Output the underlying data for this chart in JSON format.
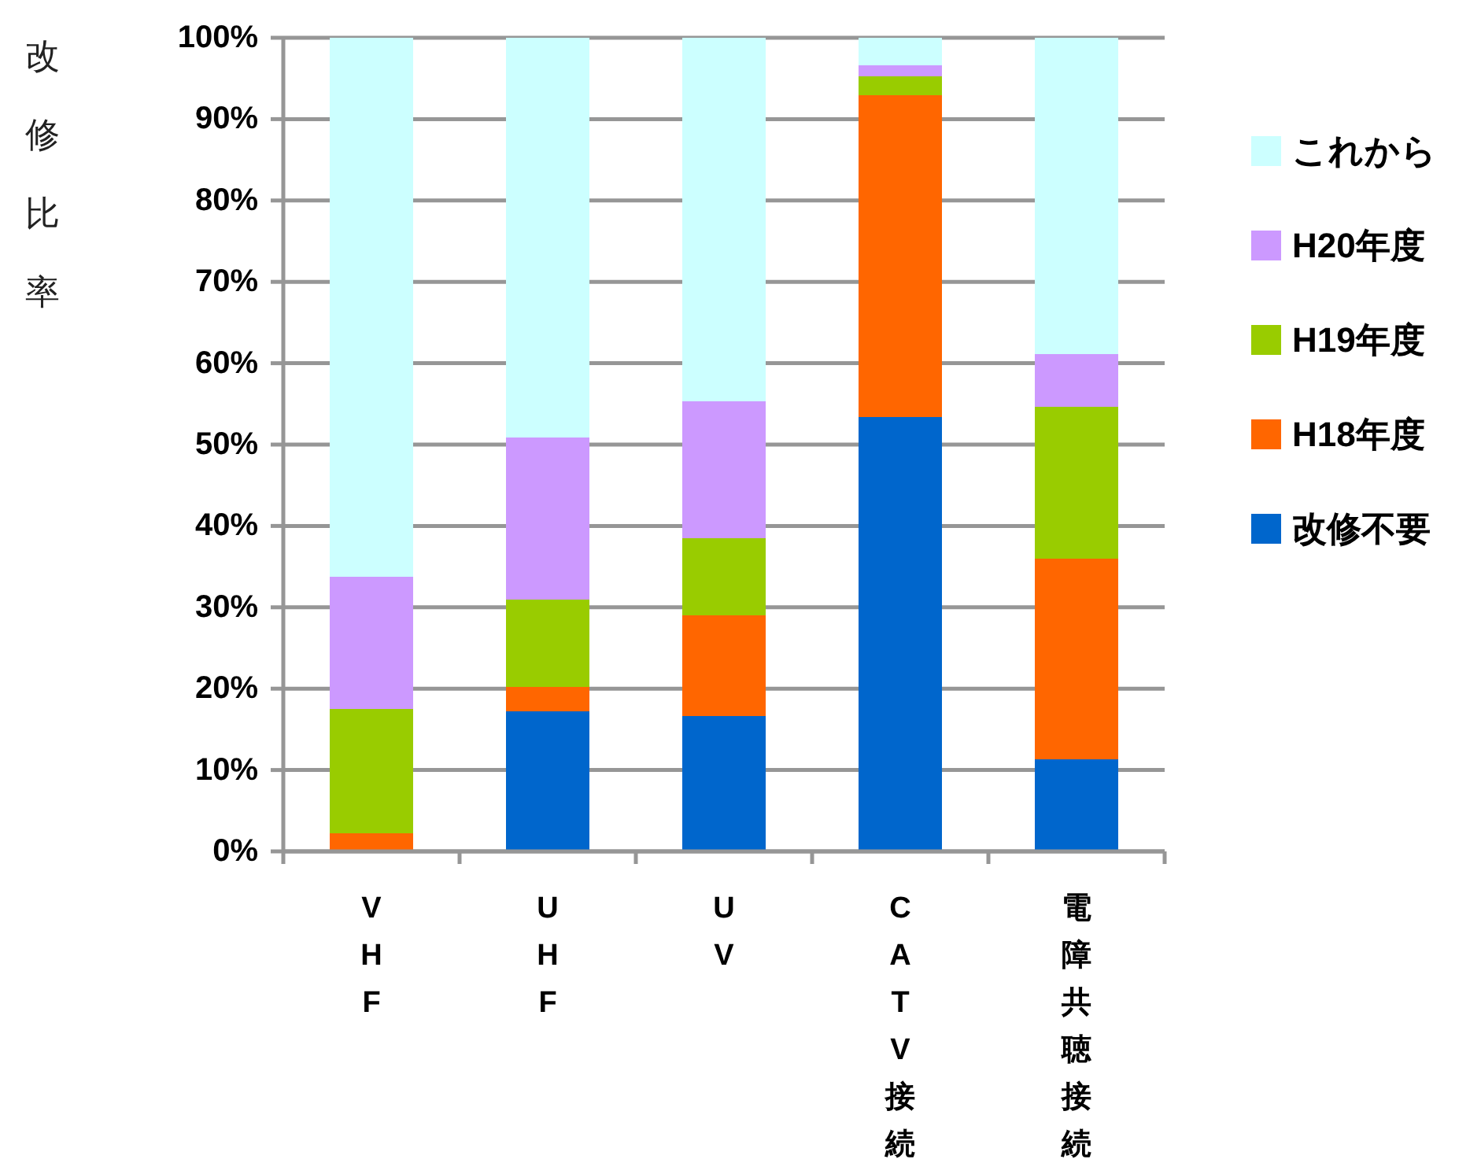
{
  "chart_data": {
    "type": "bar",
    "stacked": true,
    "ylabel": "改修比率",
    "categories": [
      "VHF",
      "UHF",
      "UV",
      "CATV接続",
      "電障共聴接続"
    ],
    "series": [
      {
        "name": "改修不要",
        "color": "#0066cc",
        "values": [
          0,
          17.2,
          16.6,
          53.4,
          11.3
        ]
      },
      {
        "name": "H18年度",
        "color": "#ff6600",
        "values": [
          2.2,
          3.0,
          12.4,
          39.5,
          24.7
        ]
      },
      {
        "name": "H19年度",
        "color": "#99cc00",
        "values": [
          15.3,
          10.7,
          9.5,
          2.4,
          18.6
        ]
      },
      {
        "name": "H20年度",
        "color": "#cc99ff",
        "values": [
          16.3,
          20.0,
          16.8,
          1.3,
          6.5
        ]
      },
      {
        "name": "これから",
        "color": "#ccffff",
        "values": [
          66.2,
          49.1,
          44.7,
          3.4,
          38.9
        ]
      }
    ],
    "ylim": [
      0,
      100
    ],
    "yticks": [
      {
        "value": 0,
        "label": "0%"
      },
      {
        "value": 10,
        "label": "10%"
      },
      {
        "value": 20,
        "label": "20%"
      },
      {
        "value": 30,
        "label": "30%"
      },
      {
        "value": 40,
        "label": "40%"
      },
      {
        "value": 50,
        "label": "50%"
      },
      {
        "value": 60,
        "label": "60%"
      },
      {
        "value": 70,
        "label": "70%"
      },
      {
        "value": 80,
        "label": "80%"
      },
      {
        "value": 90,
        "label": "90%"
      },
      {
        "value": 100,
        "label": "100%"
      }
    ],
    "grid": "y",
    "legend": "right"
  }
}
